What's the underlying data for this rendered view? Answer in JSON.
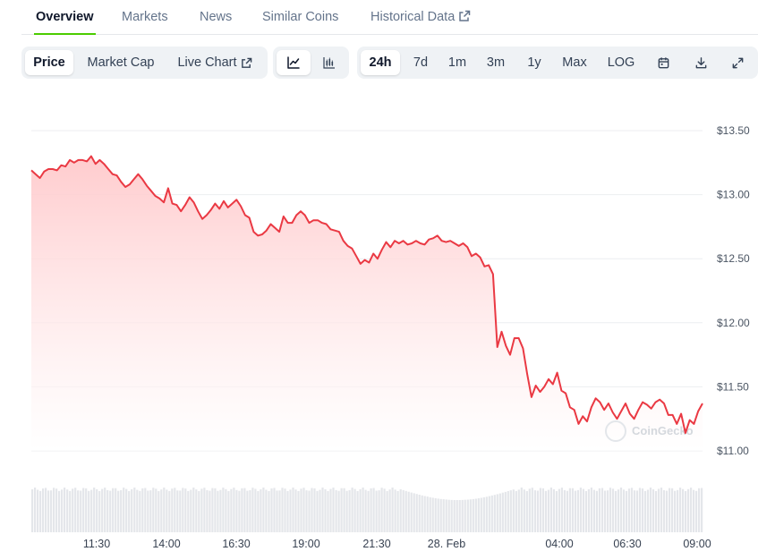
{
  "tabs": [
    {
      "label": "Overview",
      "active": true
    },
    {
      "label": "Markets",
      "active": false
    },
    {
      "label": "News",
      "active": false
    },
    {
      "label": "Similar Coins",
      "active": false
    },
    {
      "label": "Historical Data",
      "active": false,
      "icon": "external-link-icon"
    }
  ],
  "toolbar": {
    "view_options": [
      {
        "label": "Price",
        "selected": true
      },
      {
        "label": "Market Cap",
        "selected": false
      },
      {
        "label": "Live Chart",
        "selected": false,
        "icon": "external-link-icon"
      }
    ],
    "chart_types": [
      {
        "icon": "line-chart-icon",
        "selected": true
      },
      {
        "icon": "candlestick-chart-icon",
        "selected": false
      }
    ],
    "ranges": [
      {
        "label": "24h",
        "selected": true
      },
      {
        "label": "7d",
        "selected": false
      },
      {
        "label": "1m",
        "selected": false
      },
      {
        "label": "3m",
        "selected": false
      },
      {
        "label": "1y",
        "selected": false
      },
      {
        "label": "Max",
        "selected": false
      },
      {
        "label": "LOG",
        "selected": false
      }
    ],
    "actions": [
      "calendar-icon",
      "download-icon",
      "fullscreen-icon"
    ]
  },
  "watermark": "CoinGecko",
  "colors": {
    "line": "#ea3943",
    "area_top": "#ffc9cb",
    "grid": "#eceef1",
    "volume": "#e4e6ea",
    "tab_accent": "#4bcc00"
  },
  "chart_data": {
    "type": "area",
    "title": "",
    "xlabel": "",
    "ylabel": "",
    "ylim": [
      11.0,
      13.5
    ],
    "yticks": [
      "$13.50",
      "$13.00",
      "$12.50",
      "$12.00",
      "$11.50",
      "$11.00"
    ],
    "xticks": [
      "11:30",
      "14:00",
      "16:30",
      "19:00",
      "21:30",
      "28. Feb",
      "04:00",
      "06:30",
      "09:00"
    ],
    "grid": true,
    "legend": "none",
    "series": [
      {
        "values": [
          13.19,
          13.16,
          13.13,
          13.18,
          13.2,
          13.2,
          13.19,
          13.23,
          13.22,
          13.27,
          13.25,
          13.27,
          13.27,
          13.26,
          13.3,
          13.24,
          13.27,
          13.24,
          13.2,
          13.16,
          13.15,
          13.1,
          13.06,
          13.08,
          13.12,
          13.16,
          13.12,
          13.07,
          13.03,
          12.99,
          12.97,
          12.94,
          13.05,
          12.93,
          12.92,
          12.87,
          12.92,
          12.98,
          12.94,
          12.87,
          12.81,
          12.84,
          12.88,
          12.93,
          12.89,
          12.95,
          12.9,
          12.93,
          12.96,
          12.91,
          12.84,
          12.82,
          12.71,
          12.68,
          12.69,
          12.72,
          12.77,
          12.74,
          12.71,
          12.83,
          12.78,
          12.78,
          12.84,
          12.87,
          12.84,
          12.78,
          12.8,
          12.8,
          12.78,
          12.77,
          12.73,
          12.72,
          12.71,
          12.64,
          12.6,
          12.58,
          12.52,
          12.46,
          12.49,
          12.47,
          12.54,
          12.5,
          12.57,
          12.63,
          12.59,
          12.64,
          12.62,
          12.64,
          12.61,
          12.62,
          12.64,
          12.62,
          12.61,
          12.65,
          12.66,
          12.68,
          12.64,
          12.63,
          12.64,
          12.62,
          12.6,
          12.62,
          12.59,
          12.52,
          12.54,
          12.51,
          12.44,
          12.45,
          12.38,
          11.81,
          11.93,
          11.82,
          11.75,
          11.88,
          11.88,
          11.8,
          11.6,
          11.42,
          11.51,
          11.46,
          11.5,
          11.56,
          11.52,
          11.61,
          11.47,
          11.45,
          11.34,
          11.32,
          11.21,
          11.27,
          11.23,
          11.34,
          11.41,
          11.38,
          11.32,
          11.37,
          11.3,
          11.25,
          11.31,
          11.37,
          11.29,
          11.25,
          11.32,
          11.38,
          11.36,
          11.33,
          11.38,
          11.4,
          11.37,
          11.28,
          11.28,
          11.21,
          11.29,
          11.14,
          11.24,
          11.21,
          11.31,
          11.37
        ]
      }
    ],
    "volume_note": "volume bars shown beneath price, unlabeled"
  }
}
